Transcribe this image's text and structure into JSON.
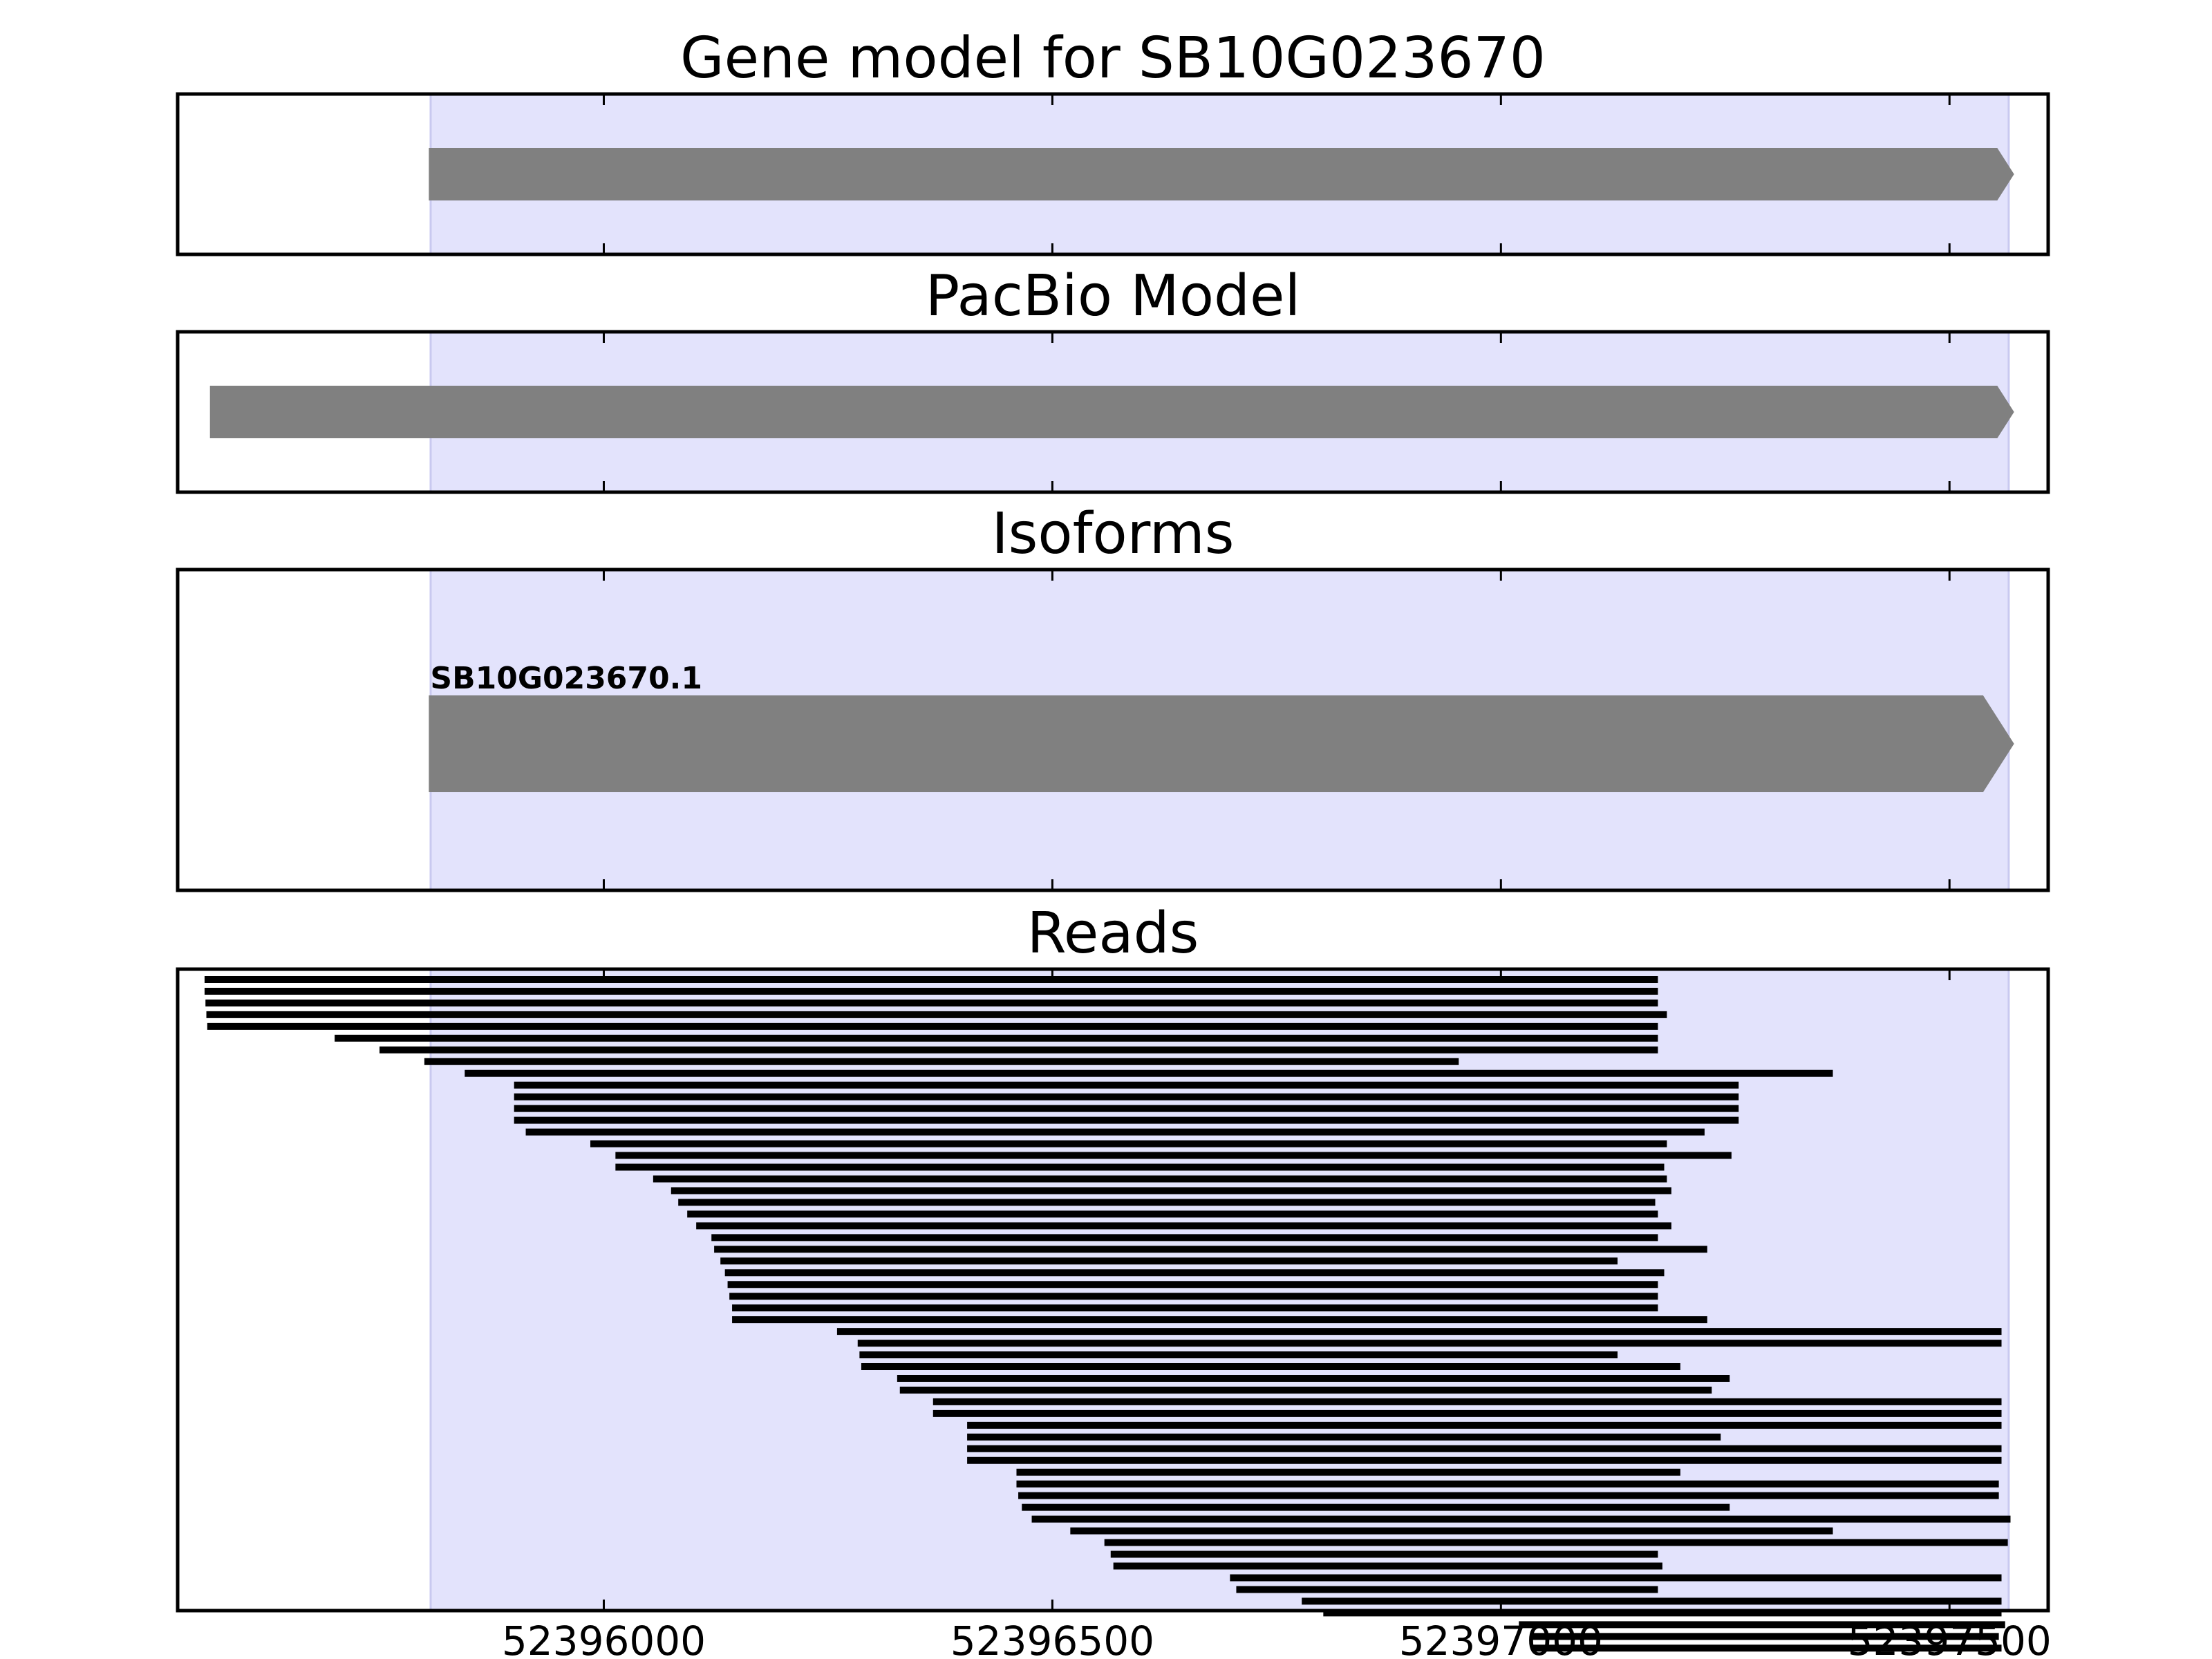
{
  "chart_data": {
    "type": "gene-track",
    "xlim": [
      52395525,
      52397610
    ],
    "highlight_region": [
      52395807,
      52397566
    ],
    "highlight_color": "#e3e3fc",
    "feature_color": "#808080",
    "read_color": "#000000",
    "x_ticks": [
      52396000,
      52396500,
      52397000,
      52397500
    ],
    "x_tick_labels": [
      "52396000",
      "52396500",
      "52397000",
      "52397500"
    ],
    "panels": [
      {
        "key": "gene",
        "title": "Gene model for SB10G023670",
        "features": [
          {
            "start": 52395805,
            "end": 52397572,
            "strand": "+",
            "label": ""
          }
        ]
      },
      {
        "key": "pacbio",
        "title": "PacBio Model",
        "features": [
          {
            "start": 52395561,
            "end": 52397572,
            "strand": "+",
            "label": ""
          }
        ]
      },
      {
        "key": "isoforms",
        "title": "Isoforms",
        "features": [
          {
            "start": 52395805,
            "end": 52397572,
            "strand": "+",
            "label": "SB10G023670.1"
          }
        ]
      },
      {
        "key": "reads",
        "title": "Reads",
        "reads": [
          [
            52395555,
            52397175
          ],
          [
            52395555,
            52397175
          ],
          [
            52395556,
            52397175
          ],
          [
            52395557,
            52397185
          ],
          [
            52395558,
            52397175
          ],
          [
            52395700,
            52397175
          ],
          [
            52395750,
            52397175
          ],
          [
            52395800,
            52396953
          ],
          [
            52395845,
            52397370
          ],
          [
            52395900,
            52397265
          ],
          [
            52395900,
            52397265
          ],
          [
            52395900,
            52397265
          ],
          [
            52395900,
            52397265
          ],
          [
            52395913,
            52397227
          ],
          [
            52395985,
            52397185
          ],
          [
            52396013,
            52397257
          ],
          [
            52396013,
            52397182
          ],
          [
            52396055,
            52397185
          ],
          [
            52396075,
            52397190
          ],
          [
            52396083,
            52397172
          ],
          [
            52396093,
            52397175
          ],
          [
            52396103,
            52397190
          ],
          [
            52396120,
            52397175
          ],
          [
            52396123,
            52397230
          ],
          [
            52396130,
            52397130
          ],
          [
            52396135,
            52397182
          ],
          [
            52396138,
            52397175
          ],
          [
            52396140,
            52397175
          ],
          [
            52396143,
            52397175
          ],
          [
            52396143,
            52397230
          ],
          [
            52396260,
            52397558
          ],
          [
            52396283,
            52397558
          ],
          [
            52396285,
            52397130
          ],
          [
            52396287,
            52397200
          ],
          [
            52396327,
            52397255
          ],
          [
            52396330,
            52397235
          ],
          [
            52396367,
            52397558
          ],
          [
            52396367,
            52397558
          ],
          [
            52396405,
            52397558
          ],
          [
            52396405,
            52397245
          ],
          [
            52396405,
            52397558
          ],
          [
            52396405,
            52397558
          ],
          [
            52396460,
            52397200
          ],
          [
            52396460,
            52397555
          ],
          [
            52396462,
            52397555
          ],
          [
            52396466,
            52397255
          ],
          [
            52396477,
            52397568
          ],
          [
            52396520,
            52397370
          ],
          [
            52396558,
            52397565
          ],
          [
            52396565,
            52397175
          ],
          [
            52396568,
            52397180
          ],
          [
            52396698,
            52397558
          ],
          [
            52396705,
            52397175
          ],
          [
            52396778,
            52397558
          ],
          [
            52396802,
            52397558
          ],
          [
            52397020,
            52397562
          ],
          [
            52397035,
            52397555
          ],
          [
            52397035,
            52397558
          ]
        ]
      }
    ]
  }
}
